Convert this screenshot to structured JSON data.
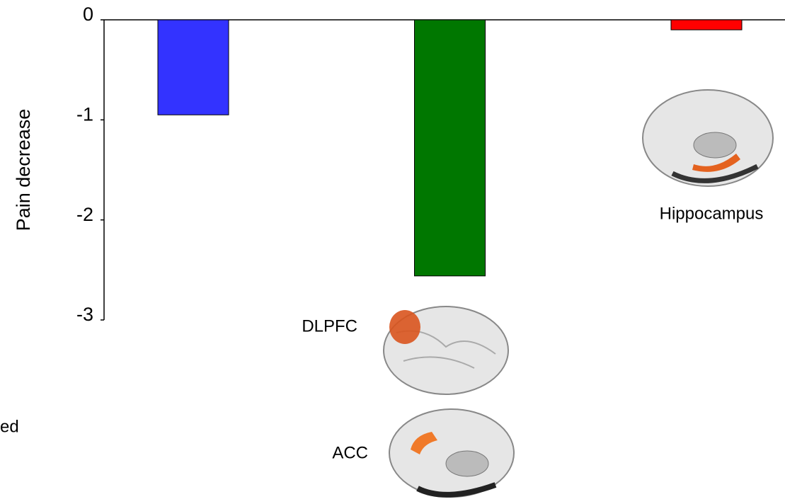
{
  "chart_data": {
    "type": "bar",
    "y_label": "Pain decrease",
    "categories": [
      null,
      null,
      null
    ],
    "values": [
      -0.95,
      -2.56,
      -0.1
    ],
    "colors": [
      "#3333ff",
      "#007700",
      "#ff0000"
    ],
    "ylim": [
      -3,
      0
    ],
    "yticks": [
      0,
      -1,
      -2,
      -3
    ],
    "grid": false,
    "annotations": [
      "DLPFC",
      "ACC",
      "Hippocampus",
      "ed"
    ]
  }
}
